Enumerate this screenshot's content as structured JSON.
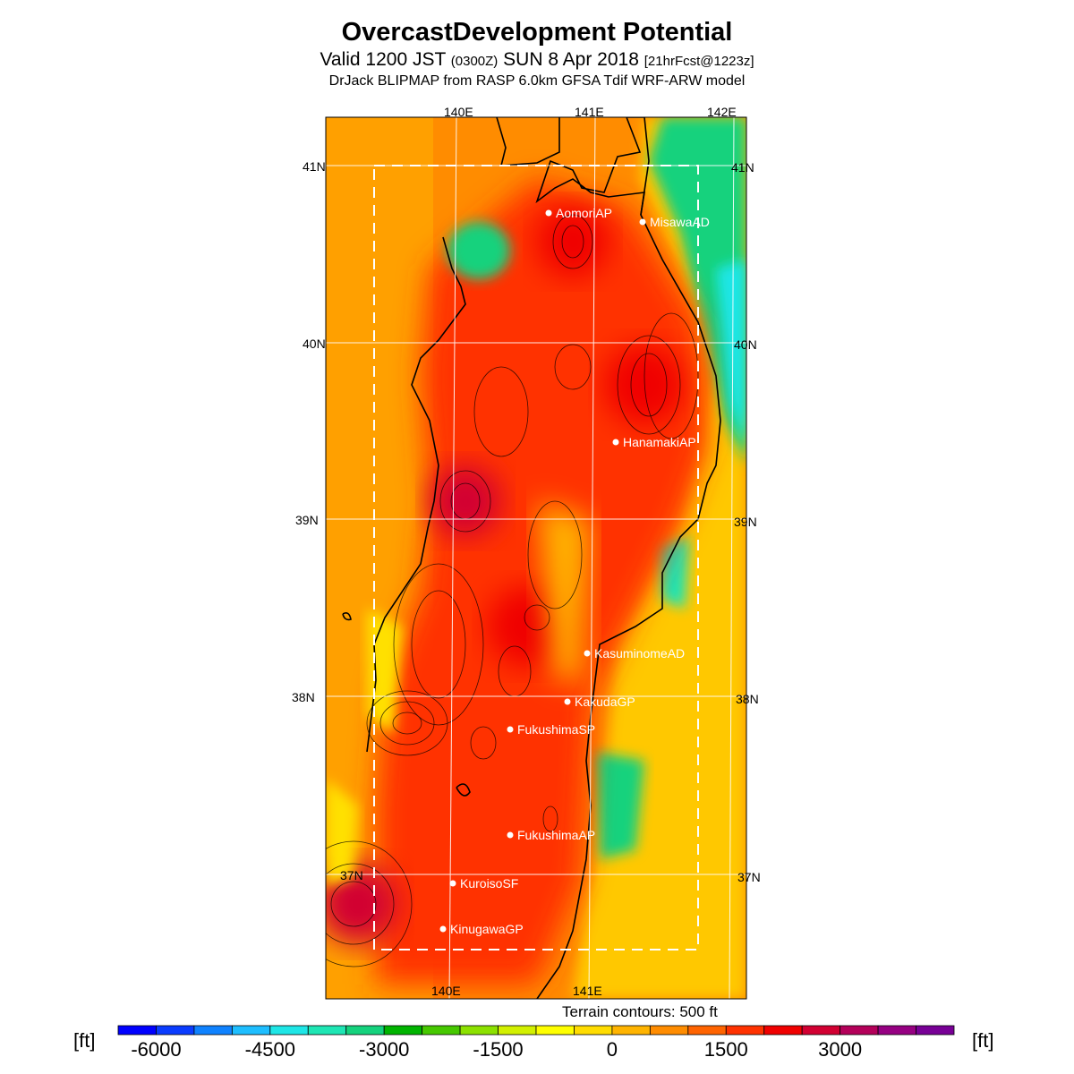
{
  "header": {
    "title": "OvercastDevelopment Potential",
    "subtitle_a": "Valid 1200 JST",
    "subtitle_b": "(0300Z)",
    "subtitle_c": "SUN 8 Apr 2018",
    "subtitle_d": "[21hrFcst@1223z]",
    "model_line": "DrJack BLIPMAP from RASP 6.0km GFSA Tdif WRF-ARW model"
  },
  "map": {
    "lon_labels_top": [
      "140E",
      "141E",
      "142E"
    ],
    "lon_labels_bottom": [
      "140E",
      "141E"
    ],
    "lat_labels_left": [
      "41N",
      "40N",
      "39N",
      "38N",
      "37N"
    ],
    "lat_labels_right": [
      "41N",
      "40N",
      "39N",
      "38N",
      "37N"
    ],
    "sites": [
      {
        "name": "AomoriAP"
      },
      {
        "name": "MisawaAD"
      },
      {
        "name": "HanamakiAP"
      },
      {
        "name": "KasuminomeAD"
      },
      {
        "name": "KakudaGP"
      },
      {
        "name": "FukushimaSP"
      },
      {
        "name": "FukushimaAP"
      },
      {
        "name": "KuroisoSF"
      },
      {
        "name": "KinugawaGP"
      }
    ]
  },
  "footer": {
    "terrain_note": "Terrain contours: 500 ft",
    "unit_left": "[ft]",
    "unit_right": "[ft]"
  },
  "colorbar": {
    "tick_labels": [
      "-6000",
      "-4500",
      "-3000",
      "-1500",
      "0",
      "1500",
      "3000"
    ],
    "colors": [
      "#0000ff",
      "#0a3cff",
      "#0f82ff",
      "#1ebeff",
      "#1ee6e6",
      "#1ee6b4",
      "#14d27d",
      "#00b400",
      "#46c800",
      "#8ce100",
      "#d2f000",
      "#ffff00",
      "#ffdc00",
      "#ffb400",
      "#ff8c00",
      "#ff6400",
      "#ff3200",
      "#f00000",
      "#d20032",
      "#b4005a",
      "#960082",
      "#780096"
    ]
  }
}
